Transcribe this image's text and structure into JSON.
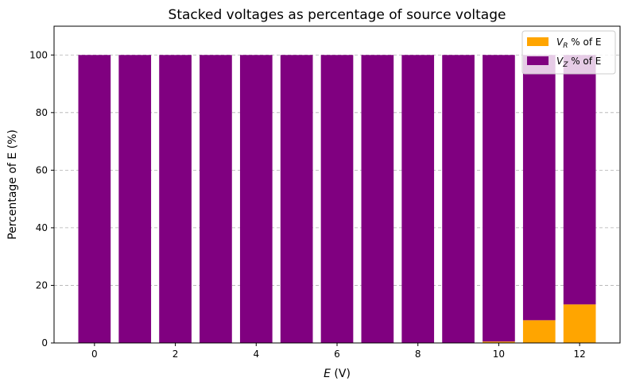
{
  "chart_data": {
    "type": "bar",
    "stacked": true,
    "title": "Stacked voltages as percentage of source voltage",
    "xlabel_var": "E",
    "xlabel_unit": " (V)",
    "ylabel": "Percentage of E (%)",
    "x": [
      0,
      1,
      2,
      3,
      4,
      5,
      6,
      7,
      8,
      9,
      10,
      11,
      12
    ],
    "xlim": [
      -1.0,
      13.0
    ],
    "ylim": [
      0,
      110
    ],
    "xticks": [
      0,
      2,
      4,
      6,
      8,
      10,
      12
    ],
    "yticks": [
      0,
      20,
      40,
      60,
      80,
      100
    ],
    "grid": "y-dashed",
    "legend_position": "top-right",
    "series": [
      {
        "name": "V_R % of E",
        "label_main": "V",
        "label_sub": "R",
        "label_rest": " % of E",
        "color": "#ffa500",
        "values": [
          0,
          0,
          0,
          0,
          0,
          0,
          0,
          0,
          0,
          0,
          0.5,
          7.9,
          13.4
        ]
      },
      {
        "name": "V_Z % of E",
        "label_main": "V",
        "label_sub": "Z",
        "label_rest": " % of E",
        "color": "#800080",
        "values": [
          100,
          100,
          100,
          100,
          100,
          100,
          100,
          100,
          100,
          100,
          99.5,
          92.1,
          86.6
        ]
      }
    ]
  }
}
